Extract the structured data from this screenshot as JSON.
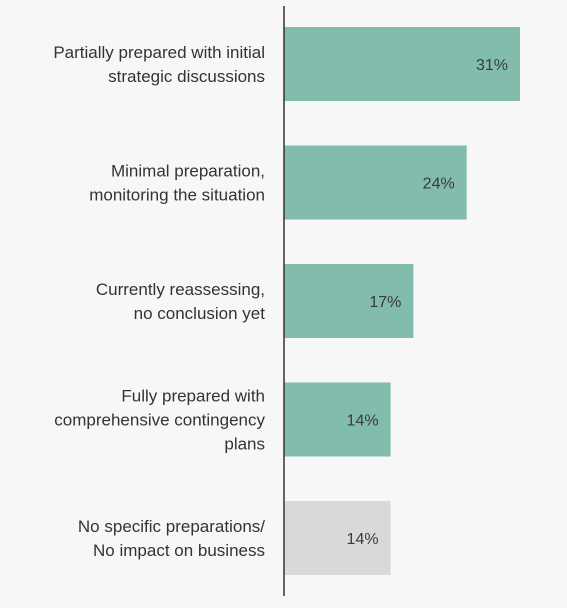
{
  "chart_data": {
    "type": "bar",
    "orientation": "horizontal",
    "categories": [
      "Partially prepared with initial strategic discussions",
      "Minimal preparation, monitoring the situation",
      "Currently reassessing, no conclusion yet",
      "Fully prepared with comprehensive contingency plans",
      "No specific preparations/ No impact on business"
    ],
    "category_lines": [
      [
        "Partially prepared with initial",
        "strategic discussions"
      ],
      [
        "Minimal preparation,",
        "monitoring the situation"
      ],
      [
        "Currently reassessing,",
        "no conclusion yet"
      ],
      [
        "Fully prepared with",
        "comprehensive contingency",
        "plans"
      ],
      [
        "No specific preparations/",
        "No impact on business"
      ]
    ],
    "values": [
      31,
      24,
      17,
      14,
      14
    ],
    "value_labels": [
      "31%",
      "24%",
      "17%",
      "14%",
      "14%"
    ],
    "bar_colors": [
      "#82bcac",
      "#82bcac",
      "#82bcac",
      "#82bcac",
      "#d9d9d9"
    ],
    "axis_color": "#333333",
    "xlim": [
      0,
      31
    ],
    "title": "",
    "xlabel": "",
    "ylabel": "",
    "grid": false,
    "legend": "none"
  }
}
